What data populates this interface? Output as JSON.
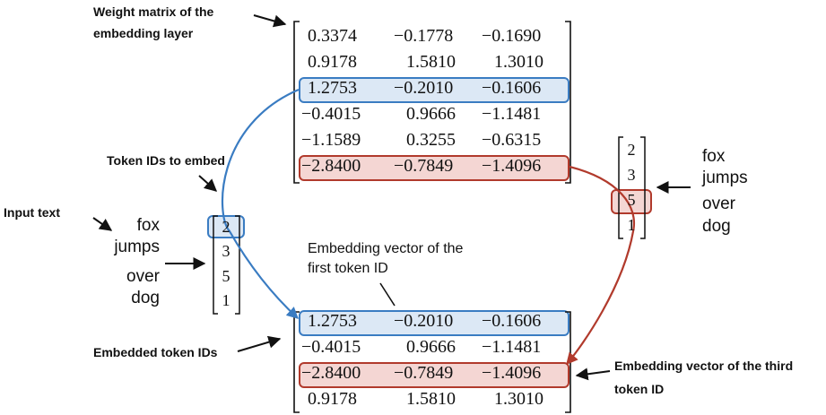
{
  "labels": {
    "weight_matrix_line1": "Weight matrix of the",
    "weight_matrix_line2": "embedding layer",
    "token_ids_to_embed": "Token IDs to embed",
    "input_text": "Input text",
    "embedded_token_ids": "Embedded token IDs",
    "embedding_first_line1": "Embedding vector of the",
    "embedding_first_line2": "first token ID",
    "embedding_third_line1": "Embedding vector of the third",
    "embedding_third_line2": "token ID"
  },
  "input_words": [
    "fox",
    "jumps",
    "over",
    "dog"
  ],
  "token_ids": [
    "2",
    "3",
    "5",
    "1"
  ],
  "weight_matrix": [
    [
      "0.3374",
      "−0.1778",
      "−0.1690"
    ],
    [
      "0.9178",
      "1.5810",
      "1.3010"
    ],
    [
      "1.2753",
      "−0.2010",
      "−0.1606"
    ],
    [
      "−0.4015",
      "0.9666",
      "−1.1481"
    ],
    [
      "−1.1589",
      "0.3255",
      "−0.6315"
    ],
    [
      "−2.8400",
      "−0.7849",
      "−1.4096"
    ]
  ],
  "embedded_matrix": [
    [
      "1.2753",
      "−0.2010",
      "−0.1606"
    ],
    [
      "−0.4015",
      "0.9666",
      "−1.1481"
    ],
    [
      "−2.8400",
      "−0.7849",
      "−1.4096"
    ],
    [
      "0.9178",
      "1.5810",
      "1.3010"
    ]
  ],
  "colors": {
    "blue": "#3a7cc2",
    "blue_fill": "#dce8f5",
    "red": "#b13a2c",
    "red_fill": "#f4d6d3"
  }
}
